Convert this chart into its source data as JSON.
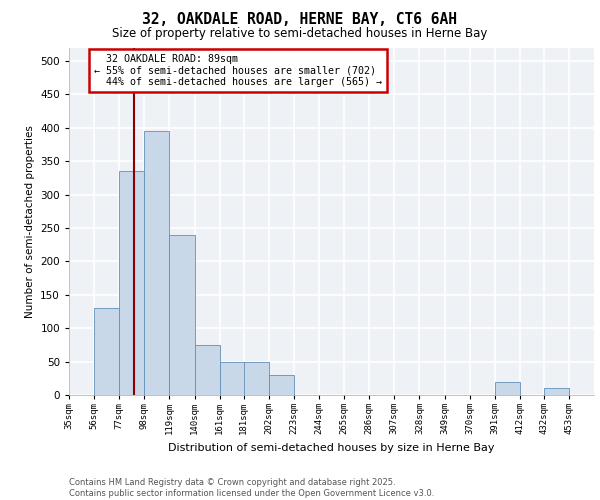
{
  "title1": "32, OAKDALE ROAD, HERNE BAY, CT6 6AH",
  "title2": "Size of property relative to semi-detached houses in Herne Bay",
  "xlabel": "Distribution of semi-detached houses by size in Herne Bay",
  "ylabel": "Number of semi-detached properties",
  "footnote": "Contains HM Land Registry data © Crown copyright and database right 2025.\nContains public sector information licensed under the Open Government Licence v3.0.",
  "bin_labels": [
    "35sqm",
    "56sqm",
    "77sqm",
    "98sqm",
    "119sqm",
    "140sqm",
    "161sqm",
    "181sqm",
    "202sqm",
    "223sqm",
    "244sqm",
    "265sqm",
    "286sqm",
    "307sqm",
    "328sqm",
    "349sqm",
    "370sqm",
    "391sqm",
    "412sqm",
    "432sqm",
    "453sqm"
  ],
  "bar_values": [
    0,
    130,
    335,
    395,
    240,
    75,
    50,
    50,
    30,
    0,
    0,
    0,
    0,
    0,
    0,
    0,
    0,
    20,
    0,
    10,
    0
  ],
  "bar_color": "#c8d8e8",
  "bar_edge_color": "#6090b8",
  "property_size": 89,
  "pct_smaller": 55,
  "count_smaller": 702,
  "pct_larger": 44,
  "count_larger": 565,
  "vline_color": "#8b0000",
  "annotation_box_color": "#cc0000",
  "ylim": [
    0,
    520
  ],
  "yticks": [
    0,
    50,
    100,
    150,
    200,
    250,
    300,
    350,
    400,
    450,
    500
  ],
  "background_color": "#eef2f7",
  "grid_color": "#ffffff",
  "bin_edges": [
    35,
    56,
    77,
    98,
    119,
    140,
    161,
    181,
    202,
    223,
    244,
    265,
    286,
    307,
    328,
    349,
    370,
    391,
    412,
    432,
    453
  ],
  "bin_width": 21
}
